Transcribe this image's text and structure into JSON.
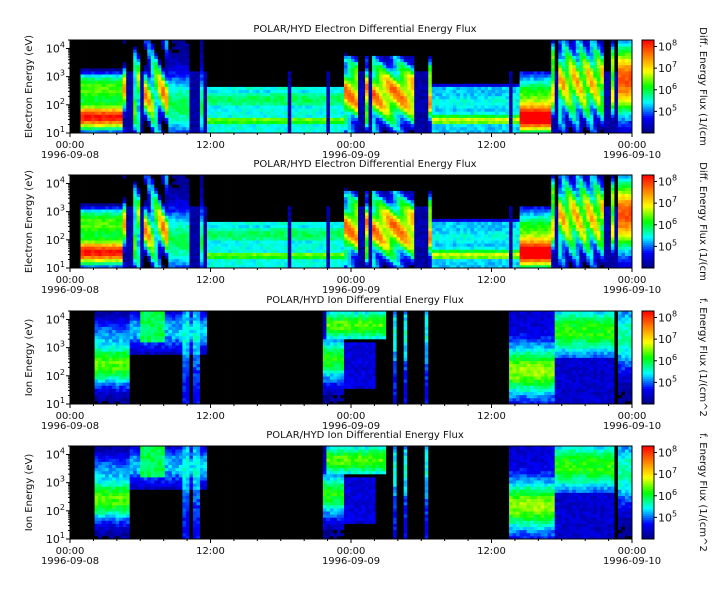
{
  "chart_data": [
    {
      "type": "heatmap",
      "title": "POLAR/HYD  Electron Differential Energy Flux",
      "ylabel": "Electron Energy (eV)",
      "colorbar_label": "Diff. Energy Flux (1/(cm",
      "ylim": [
        10,
        20000
      ],
      "y_scale": "log",
      "y_ticks": [
        {
          "value": 10,
          "base": "10",
          "exp": "1"
        },
        {
          "value": 100,
          "base": "10",
          "exp": "2"
        },
        {
          "value": 1000,
          "base": "10",
          "exp": "3"
        },
        {
          "value": 10000,
          "base": "10",
          "exp": "4"
        }
      ],
      "colorbar_range": [
        10000,
        200000000
      ],
      "colorbar_ticks": [
        {
          "value": 100000,
          "base": "10",
          "exp": "5"
        },
        {
          "value": 1000000,
          "base": "10",
          "exp": "6"
        },
        {
          "value": 10000000,
          "base": "10",
          "exp": "7"
        },
        {
          "value": 100000000,
          "base": "10",
          "exp": "8"
        }
      ],
      "x_ticks": [
        {
          "time": "00:00",
          "date": "1996-09-08"
        },
        {
          "time": "12:00",
          "date": ""
        },
        {
          "time": "00:00",
          "date": "1996-09-09"
        },
        {
          "time": "12:00",
          "date": ""
        },
        {
          "time": "00:00",
          "date": "1996-09-10"
        }
      ],
      "x_range_hours": [
        0,
        48
      ],
      "species": "electron",
      "colormap": [
        "#000080",
        "#0000ff",
        "#00ffff",
        "#00ff00",
        "#ffff00",
        "#ff8000",
        "#ff0000"
      ]
    },
    {
      "type": "heatmap",
      "title": "POLAR/HYD  Electron Differential Energy Flux",
      "ylabel": "Electron Energy (eV)",
      "colorbar_label": "Diff. Energy Flux (1/(cm",
      "ylim": [
        10,
        20000
      ],
      "y_scale": "log",
      "y_ticks": [
        {
          "value": 10,
          "base": "10",
          "exp": "1"
        },
        {
          "value": 100,
          "base": "10",
          "exp": "2"
        },
        {
          "value": 1000,
          "base": "10",
          "exp": "3"
        },
        {
          "value": 10000,
          "base": "10",
          "exp": "4"
        }
      ],
      "colorbar_range": [
        10000,
        200000000
      ],
      "colorbar_ticks": [
        {
          "value": 100000,
          "base": "10",
          "exp": "5"
        },
        {
          "value": 1000000,
          "base": "10",
          "exp": "6"
        },
        {
          "value": 10000000,
          "base": "10",
          "exp": "7"
        },
        {
          "value": 100000000,
          "base": "10",
          "exp": "8"
        }
      ],
      "x_ticks": [
        {
          "time": "00:00",
          "date": "1996-09-08"
        },
        {
          "time": "12:00",
          "date": ""
        },
        {
          "time": "00:00",
          "date": "1996-09-09"
        },
        {
          "time": "12:00",
          "date": ""
        },
        {
          "time": "00:00",
          "date": "1996-09-10"
        }
      ],
      "x_range_hours": [
        0,
        48
      ],
      "species": "electron",
      "colormap": [
        "#000080",
        "#0000ff",
        "#00ffff",
        "#00ff00",
        "#ffff00",
        "#ff8000",
        "#ff0000"
      ]
    },
    {
      "type": "heatmap",
      "title": "POLAR/HYD  Ion Differential Energy Flux",
      "ylabel": "Ion Energy (eV)",
      "colorbar_label": "f. Energy Flux (1/(cm^2",
      "ylim": [
        10,
        20000
      ],
      "y_scale": "log",
      "y_ticks": [
        {
          "value": 10,
          "base": "10",
          "exp": "1"
        },
        {
          "value": 100,
          "base": "10",
          "exp": "2"
        },
        {
          "value": 1000,
          "base": "10",
          "exp": "3"
        },
        {
          "value": 10000,
          "base": "10",
          "exp": "4"
        }
      ],
      "colorbar_range": [
        10000,
        200000000
      ],
      "colorbar_ticks": [
        {
          "value": 100000,
          "base": "10",
          "exp": "5"
        },
        {
          "value": 1000000,
          "base": "10",
          "exp": "6"
        },
        {
          "value": 10000000,
          "base": "10",
          "exp": "7"
        },
        {
          "value": 100000000,
          "base": "10",
          "exp": "8"
        }
      ],
      "x_ticks": [
        {
          "time": "00:00",
          "date": "1996-09-08"
        },
        {
          "time": "12:00",
          "date": ""
        },
        {
          "time": "00:00",
          "date": "1996-09-09"
        },
        {
          "time": "12:00",
          "date": ""
        },
        {
          "time": "00:00",
          "date": "1996-09-10"
        }
      ],
      "x_range_hours": [
        0,
        48
      ],
      "species": "ion",
      "colormap": [
        "#000080",
        "#0000ff",
        "#00ffff",
        "#00ff00",
        "#ffff00",
        "#ff8000",
        "#ff0000"
      ]
    },
    {
      "type": "heatmap",
      "title": "POLAR/HYD  Ion Differential Energy Flux",
      "ylabel": "Ion Energy (eV)",
      "colorbar_label": "f. Energy Flux (1/(cm^2",
      "ylim": [
        10,
        20000
      ],
      "y_scale": "log",
      "y_ticks": [
        {
          "value": 10,
          "base": "10",
          "exp": "1"
        },
        {
          "value": 100,
          "base": "10",
          "exp": "2"
        },
        {
          "value": 1000,
          "base": "10",
          "exp": "3"
        },
        {
          "value": 10000,
          "base": "10",
          "exp": "4"
        }
      ],
      "colorbar_range": [
        10000,
        200000000
      ],
      "colorbar_ticks": [
        {
          "value": 100000,
          "base": "10",
          "exp": "5"
        },
        {
          "value": 1000000,
          "base": "10",
          "exp": "6"
        },
        {
          "value": 10000000,
          "base": "10",
          "exp": "7"
        },
        {
          "value": 100000000,
          "base": "10",
          "exp": "8"
        }
      ],
      "x_ticks": [
        {
          "time": "00:00",
          "date": "1996-09-08"
        },
        {
          "time": "12:00",
          "date": ""
        },
        {
          "time": "00:00",
          "date": "1996-09-09"
        },
        {
          "time": "12:00",
          "date": ""
        },
        {
          "time": "00:00",
          "date": "1996-09-10"
        }
      ],
      "x_range_hours": [
        0,
        48
      ],
      "species": "ion",
      "colormap": [
        "#000080",
        "#0000ff",
        "#00ffff",
        "#00ff00",
        "#ffff00",
        "#ff8000",
        "#ff0000"
      ]
    }
  ]
}
